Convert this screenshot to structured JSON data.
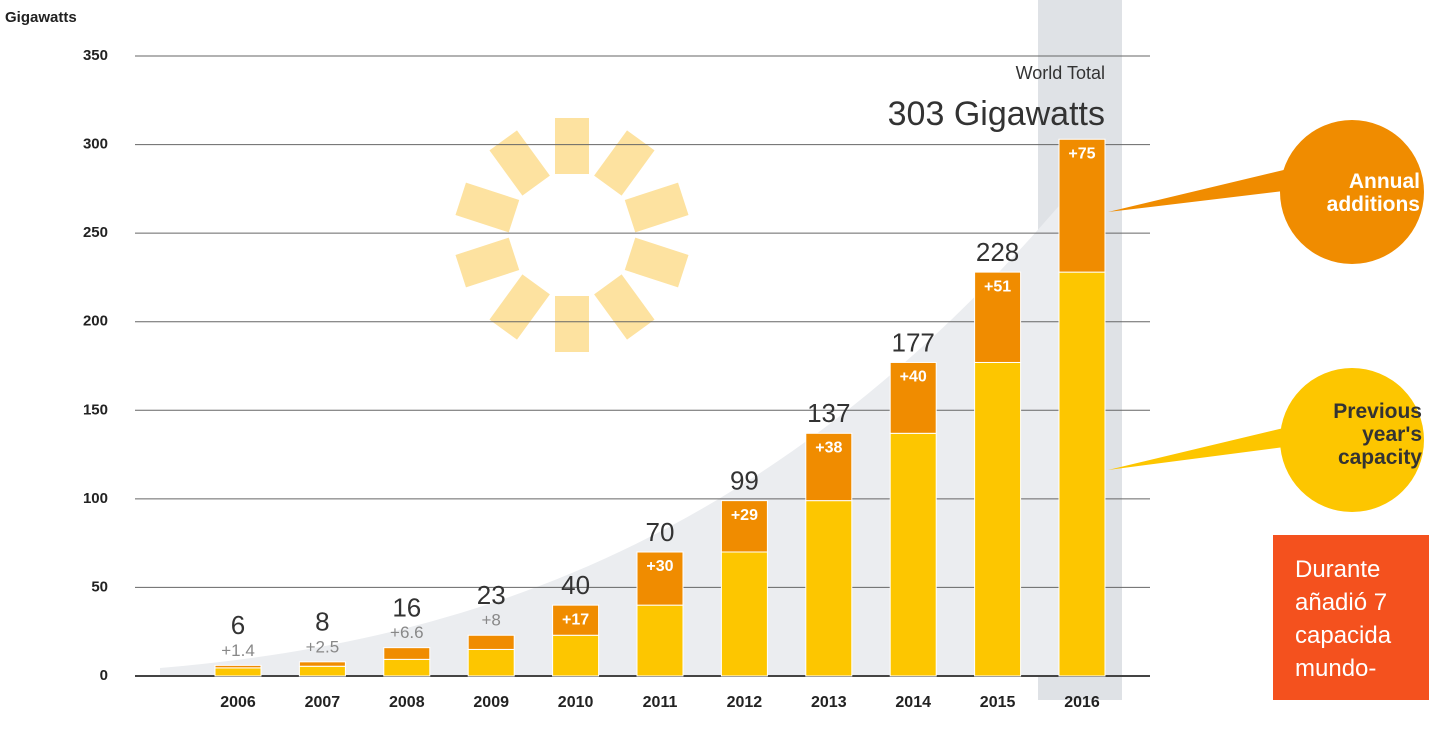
{
  "chart_data": {
    "type": "stacked_bar",
    "y_label": "Gigawatts",
    "categories": [
      "2006",
      "2007",
      "2008",
      "2009",
      "2010",
      "2011",
      "2012",
      "2013",
      "2014",
      "2015",
      "2016"
    ],
    "series": [
      {
        "name": "Previous year's capacity",
        "color": "#fdc600",
        "values": [
          4.6,
          5.5,
          9.4,
          15,
          23,
          40,
          70,
          99,
          137,
          177,
          228
        ]
      },
      {
        "name": "Annual additions",
        "color": "#f08c00",
        "values": [
          1.4,
          2.5,
          6.6,
          8,
          17,
          30,
          29,
          38,
          40,
          51,
          75
        ],
        "value_labels": [
          "+1.4",
          "+2.5",
          "+6.6",
          "+8",
          "+17",
          "+30",
          "+29",
          "+38",
          "+40",
          "+51",
          "+75"
        ]
      }
    ],
    "totals": [
      6,
      8,
      16,
      23,
      40,
      70,
      99,
      137,
      177,
      228,
      null
    ],
    "annotations": [
      "World Total",
      "303 Gigawatts"
    ],
    "note_lines": [
      "Durante",
      "añadió 7",
      "capacida",
      "mundo-"
    ],
    "ylim": [
      0,
      350
    ],
    "yticks": [
      0,
      50,
      100,
      150,
      200,
      250,
      300,
      350
    ],
    "grid": true
  }
}
